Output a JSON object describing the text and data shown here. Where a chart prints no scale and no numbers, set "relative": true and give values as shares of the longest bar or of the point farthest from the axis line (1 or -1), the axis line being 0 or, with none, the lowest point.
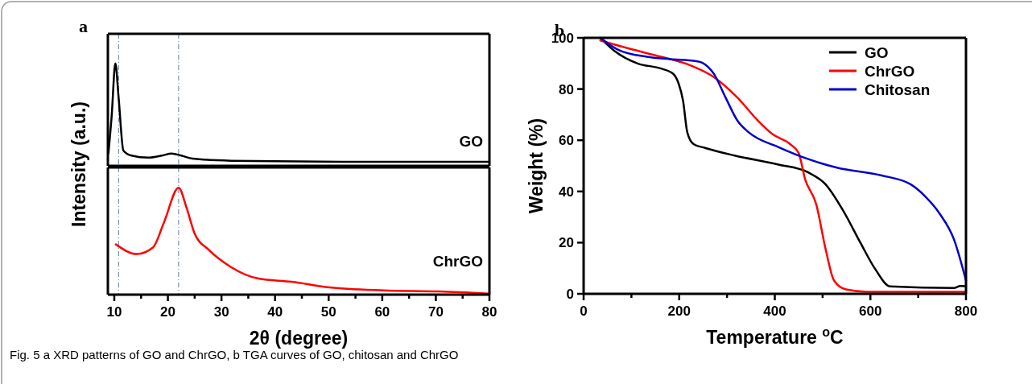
{
  "chart_data": [
    {
      "type": "line",
      "title": "a",
      "relative": true,
      "tick_labels": false,
      "xlim": [
        8.8,
        80
      ],
      "ref_lines": [
        {
          "axis": "x",
          "value": 10.8,
          "color": "#6677aa",
          "line_style": "dashed"
        },
        {
          "axis": "x",
          "value": 22,
          "color": "#6677aa",
          "line_style": "dashed"
        }
      ],
      "series": [
        {
          "name": "GO",
          "color": "#000000",
          "x": [
            8.9,
            9.5,
            10.2,
            10.8,
            11.7,
            13.2,
            16.3,
            18.9,
            20.7,
            22.5,
            24.6,
            31.8,
            52.5,
            80
          ],
          "values": [
            0.12,
            0.48,
            1.0,
            0.67,
            0.15,
            0.1,
            0.08,
            0.1,
            0.12,
            0.1,
            0.07,
            0.05,
            0.04,
            0.04
          ]
        }
      ]
    },
    {
      "type": "line",
      "relative": true,
      "tick_labels": "x",
      "xlim": [
        8.8,
        80
      ],
      "xticks": [
        10,
        20,
        30,
        40,
        50,
        60,
        70,
        80
      ],
      "xlabel": "2θ (degree)",
      "ylabel": "Intensity (a.u.)",
      "ref_lines": [
        {
          "axis": "x",
          "value": 10.8,
          "color": "#6677aa",
          "line_style": "dashed"
        },
        {
          "axis": "x",
          "value": 22,
          "color": "#6677aa",
          "line_style": "dashed"
        }
      ],
      "annotations": [
        "Fig. 5  a XRD patterns of GO and ChrGO, b TGA curves of GO, chitosan and ChrGO"
      ],
      "series": [
        {
          "name": "ChrGO",
          "color": "#ff0000",
          "x": [
            10.3,
            14.2,
            17.2,
            19.3,
            22,
            23.5,
            25,
            27.6,
            31.7,
            36.9,
            43.1,
            49.8,
            60.2,
            70.6,
            79.9
          ],
          "values": [
            0.47,
            0.38,
            0.44,
            0.68,
            1.0,
            0.81,
            0.57,
            0.42,
            0.26,
            0.15,
            0.12,
            0.07,
            0.04,
            0.03,
            0.01
          ]
        }
      ]
    },
    {
      "type": "line",
      "title": "b",
      "xlabel": "Temperature $^{o}$C",
      "ylabel": "Weight (%)",
      "xlim": [
        0,
        800
      ],
      "ylim": [
        0,
        100
      ],
      "xticks": [
        0,
        200,
        400,
        600,
        800
      ],
      "yticks": [
        0,
        20,
        40,
        60,
        80,
        100
      ],
      "legend": "top right",
      "grid": false,
      "series": [
        {
          "name": "GO",
          "color": "#000000",
          "x": [
            35,
            64,
            113,
            162,
            187,
            199,
            208,
            217,
            230,
            254,
            316,
            408,
            469,
            506,
            543,
            579,
            610,
            641,
            776,
            788,
            800
          ],
          "values": [
            100,
            95,
            90,
            88,
            86,
            82,
            75.5,
            63,
            58.5,
            57,
            54,
            50.5,
            47.5,
            42.8,
            32.5,
            20,
            9.7,
            2.9,
            2.3,
            3.1,
            3
          ]
        },
        {
          "name": "ChrGO",
          "color": "#ff0000",
          "x": [
            35,
            101,
            162,
            224,
            273,
            322,
            365,
            395,
            432,
            450,
            463,
            487,
            506,
            524,
            549,
            592,
            800
          ],
          "values": [
            99,
            95.5,
            92.6,
            89.2,
            84.6,
            76.6,
            67.6,
            62.4,
            58.5,
            55,
            45,
            34.8,
            17.7,
            5.2,
            1.7,
            0.8,
            0.8
          ]
        },
        {
          "name": "Chitosan",
          "color": "#0000cc",
          "x": [
            35,
            70.5,
            132,
            181,
            236,
            248,
            273,
            297,
            322,
            346,
            408,
            469,
            530,
            622,
            684,
            714,
            745,
            775,
            800
          ],
          "values": [
            100,
            95.5,
            92.6,
            91.7,
            90.9,
            90.3,
            85.8,
            76.7,
            67.6,
            63,
            57.3,
            52.7,
            49.3,
            46.3,
            42.8,
            38.2,
            31.3,
            21.2,
            5.2
          ]
        }
      ]
    }
  ]
}
